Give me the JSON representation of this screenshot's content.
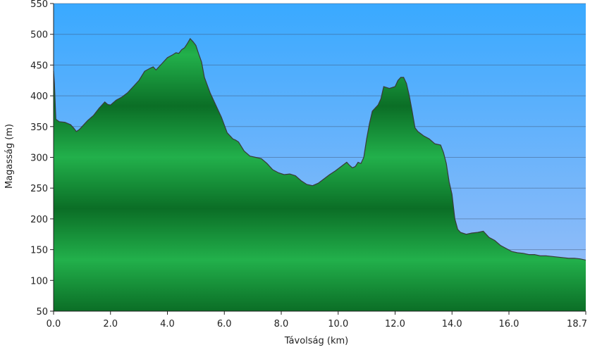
{
  "chart_data": {
    "type": "area",
    "title": "",
    "xlabel": "Távolság   (km)",
    "ylabel": "Magasság (m)",
    "xlim": [
      0,
      18.7
    ],
    "ylim": [
      50,
      550
    ],
    "grid": true,
    "x_ticks": [
      0,
      2,
      4,
      6,
      8,
      10,
      12,
      14,
      16,
      18.7
    ],
    "x_tick_labels": [
      "0.0",
      "2.0",
      "4.0",
      "6.0",
      "8.0",
      "10.0",
      "12.0",
      "14.0",
      "16.0",
      "18.7"
    ],
    "y_ticks": [
      50,
      100,
      150,
      200,
      250,
      300,
      350,
      400,
      450,
      500,
      550
    ],
    "y_tick_labels": [
      "50",
      "100",
      "150",
      "200",
      "250",
      "300",
      "350",
      "400",
      "450",
      "500",
      "550"
    ],
    "colors": {
      "sky_top": "#39a9ff",
      "sky_bottom": "#9fbff7",
      "fill_light": "#22b04b",
      "fill_dark": "#0b6e26",
      "line": "#3a3a3a"
    },
    "series": [
      {
        "x": [
          0.0,
          0.03,
          0.08,
          0.2,
          0.4,
          0.6,
          0.7,
          0.8,
          0.9,
          1.0,
          1.2,
          1.4,
          1.6,
          1.8,
          1.9,
          2.0,
          2.2,
          2.4,
          2.6,
          2.8,
          3.0,
          3.2,
          3.4,
          3.5,
          3.6,
          3.8,
          4.0,
          4.2,
          4.3,
          4.4,
          4.5,
          4.6,
          4.7,
          4.8,
          4.9,
          5.0,
          5.1,
          5.2,
          5.3,
          5.5,
          5.7,
          5.9,
          6.1,
          6.3,
          6.4,
          6.5,
          6.7,
          6.9,
          7.1,
          7.3,
          7.5,
          7.7,
          7.9,
          8.1,
          8.3,
          8.5,
          8.7,
          8.9,
          9.0,
          9.1,
          9.3,
          9.5,
          9.7,
          9.9,
          10.1,
          10.3,
          10.4,
          10.5,
          10.6,
          10.7,
          10.8,
          10.9,
          11.0,
          11.1,
          11.2,
          11.3,
          11.4,
          11.5,
          11.6,
          11.8,
          12.0,
          12.1,
          12.2,
          12.3,
          12.4,
          12.5,
          12.6,
          12.7,
          12.8,
          13.0,
          13.2,
          13.4,
          13.6,
          13.7,
          13.8,
          13.9,
          14.0,
          14.1,
          14.2,
          14.3,
          14.5,
          14.7,
          14.9,
          15.1,
          15.3,
          15.5,
          15.7,
          15.9,
          16.1,
          16.3,
          16.5,
          16.7,
          16.9,
          17.1,
          17.3,
          17.5,
          17.7,
          17.9,
          18.1,
          18.3,
          18.5,
          18.7
        ],
        "y": [
          440,
          420,
          362,
          358,
          357,
          353,
          348,
          342,
          345,
          350,
          360,
          368,
          380,
          390,
          386,
          385,
          393,
          398,
          405,
          415,
          425,
          440,
          445,
          447,
          442,
          452,
          462,
          467,
          470,
          469,
          475,
          478,
          485,
          493,
          488,
          482,
          468,
          455,
          430,
          405,
          385,
          365,
          340,
          330,
          328,
          325,
          310,
          302,
          300,
          298,
          290,
          280,
          275,
          272,
          273,
          270,
          262,
          256,
          255,
          254,
          258,
          265,
          272,
          278,
          285,
          292,
          287,
          283,
          285,
          292,
          290,
          300,
          330,
          355,
          375,
          380,
          385,
          395,
          415,
          412,
          415,
          425,
          430,
          430,
          420,
          400,
          375,
          348,
          342,
          335,
          330,
          322,
          320,
          308,
          290,
          260,
          240,
          200,
          183,
          178,
          175,
          177,
          178,
          180,
          170,
          165,
          157,
          152,
          147,
          145,
          144,
          142,
          142,
          140,
          140,
          139,
          138,
          137,
          136,
          136,
          135,
          133
        ]
      }
    ]
  }
}
